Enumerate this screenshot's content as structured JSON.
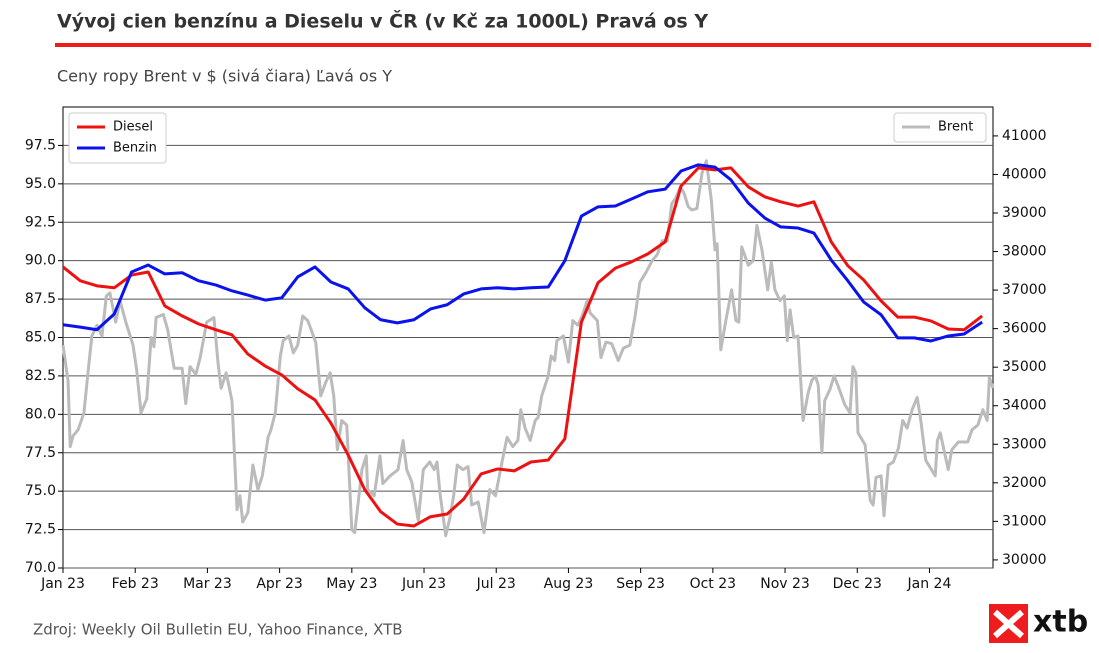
{
  "chart_data": {
    "type": "line",
    "title": "Vývoj cien benzínu a Dieselu v ČR (v Kč za 1000L) Pravá os Y",
    "subtitle": "Ceny ropy Brent v $ (sivá čiara) Ľavá os Y",
    "source": "Zdroj: Weekly Oil Bulletin EU, Yahoo Finance, XTB",
    "logo": "xtb",
    "xlim": [
      0,
      12.88
    ],
    "xticks": [
      {
        "value": 0,
        "label": "Jan 23"
      },
      {
        "value": 1,
        "label": "Feb 23"
      },
      {
        "value": 2,
        "label": "Mar 23"
      },
      {
        "value": 3,
        "label": "Apr 23"
      },
      {
        "value": 4,
        "label": "May 23"
      },
      {
        "value": 5,
        "label": "Jun 23"
      },
      {
        "value": 6,
        "label": "Jul 23"
      },
      {
        "value": 7,
        "label": "Aug 23"
      },
      {
        "value": 8,
        "label": "Sep 23"
      },
      {
        "value": 9,
        "label": "Oct 23"
      },
      {
        "value": 10,
        "label": "Nov 23"
      },
      {
        "value": 11,
        "label": "Dec 23"
      },
      {
        "value": 12,
        "label": "Jan 24"
      }
    ],
    "ylim": [
      70,
      100
    ],
    "yticks": [
      {
        "value": 70,
        "label": "70.0"
      },
      72.5,
      {
        "value": 75,
        "label": "75.0"
      },
      77.5,
      {
        "value": 80,
        "label": "80.0"
      },
      82.5,
      {
        "value": 85,
        "label": "85.0"
      },
      87.5,
      {
        "value": 90,
        "label": "90.0"
      },
      92.5,
      {
        "value": 95,
        "label": "95.0"
      },
      97.5
    ],
    "y2lim": [
      29790,
      41750
    ],
    "y2ticks": [
      30000,
      31000,
      32000,
      33000,
      34000,
      35000,
      36000,
      37000,
      38000,
      39000,
      40000,
      41000
    ],
    "grid": true,
    "legend": {
      "y2": "upper left",
      "y": "upper right"
    },
    "series": [
      {
        "name": "Diesel",
        "color": "#ee1111",
        "axis": "y2",
        "x": [
          0,
          0.24,
          0.47,
          0.71,
          0.95,
          1.18,
          1.41,
          1.65,
          1.88,
          2.12,
          2.34,
          2.56,
          2.8,
          3.03,
          3.25,
          3.49,
          3.71,
          3.95,
          4.18,
          4.4,
          4.63,
          4.86,
          5.09,
          5.32,
          5.55,
          5.79,
          6.02,
          6.25,
          6.48,
          6.72,
          6.95,
          7.18,
          7.41,
          7.65,
          7.87,
          8.1,
          8.34,
          8.56,
          8.8,
          9.03,
          9.25,
          9.49,
          9.72,
          9.94,
          10.18,
          10.4,
          10.64,
          10.87,
          11.09,
          11.33,
          11.56,
          11.79,
          12.02,
          12.26,
          12.48,
          12.73
        ],
        "values": [
          37600,
          37240,
          37110,
          37060,
          37390,
          37470,
          36590,
          36330,
          36120,
          35970,
          35840,
          35340,
          35030,
          34800,
          34440,
          34150,
          33550,
          32720,
          31820,
          31250,
          30930,
          30880,
          31120,
          31190,
          31580,
          32230,
          32360,
          32310,
          32540,
          32590,
          33140,
          36170,
          37190,
          37570,
          37730,
          37940,
          38250,
          39700,
          40170,
          40120,
          40170,
          39680,
          39420,
          39290,
          39180,
          39290,
          38250,
          37630,
          37260,
          36720,
          36300,
          36300,
          36200,
          35990,
          35970,
          36330
        ]
      },
      {
        "name": "Benzin",
        "color": "#0a12ee",
        "axis": "y2",
        "x": [
          0,
          0.24,
          0.47,
          0.71,
          0.95,
          1.18,
          1.41,
          1.65,
          1.88,
          2.12,
          2.34,
          2.56,
          2.8,
          3.03,
          3.25,
          3.49,
          3.71,
          3.95,
          4.18,
          4.4,
          4.63,
          4.86,
          5.09,
          5.32,
          5.55,
          5.79,
          6.02,
          6.25,
          6.48,
          6.72,
          6.95,
          7.18,
          7.41,
          7.65,
          7.87,
          8.1,
          8.34,
          8.56,
          8.8,
          9.03,
          9.25,
          9.49,
          9.72,
          9.94,
          10.18,
          10.4,
          10.64,
          10.87,
          11.09,
          11.33,
          11.56,
          11.79,
          12.02,
          12.26,
          12.48,
          12.73
        ],
        "values": [
          36100,
          36040,
          35970,
          36380,
          37470,
          37650,
          37420,
          37450,
          37240,
          37130,
          36980,
          36870,
          36740,
          36800,
          37340,
          37600,
          37210,
          37030,
          36540,
          36230,
          36150,
          36230,
          36510,
          36620,
          36900,
          37030,
          37060,
          37030,
          37060,
          37080,
          37760,
          38920,
          39160,
          39180,
          39360,
          39550,
          39620,
          40090,
          40250,
          40190,
          39860,
          39260,
          38870,
          38640,
          38610,
          38480,
          37780,
          37240,
          36690,
          36360,
          35760,
          35760,
          35680,
          35810,
          35860,
          36170
        ]
      },
      {
        "name": "Brent",
        "color": "#bbbbbb",
        "axis": "y",
        "x": [
          0,
          0.07,
          0.1,
          0.14,
          0.21,
          0.29,
          0.35,
          0.4,
          0.47,
          0.54,
          0.6,
          0.65,
          0.73,
          0.79,
          0.87,
          0.97,
          1.02,
          1.08,
          1.16,
          1.22,
          1.26,
          1.29,
          1.39,
          1.45,
          1.54,
          1.65,
          1.7,
          1.76,
          1.84,
          1.9,
          1.99,
          2.09,
          2.15,
          2.19,
          2.26,
          2.34,
          2.41,
          2.45,
          2.49,
          2.56,
          2.63,
          2.7,
          2.76,
          2.84,
          2.88,
          2.94,
          3.01,
          3.05,
          3.13,
          3.19,
          3.25,
          3.32,
          3.39,
          3.5,
          3.57,
          3.64,
          3.7,
          3.75,
          3.8,
          3.86,
          3.93,
          4.0,
          4.04,
          4.14,
          4.2,
          4.22,
          4.31,
          4.39,
          4.43,
          4.53,
          4.64,
          4.71,
          4.76,
          4.83,
          4.92,
          4.99,
          5.08,
          5.14,
          5.18,
          5.22,
          5.3,
          5.36,
          5.41,
          5.46,
          5.54,
          5.61,
          5.66,
          5.75,
          5.83,
          5.91,
          5.99,
          6.08,
          6.15,
          6.23,
          6.3,
          6.34,
          6.4,
          6.47,
          6.54,
          6.58,
          6.63,
          6.72,
          6.76,
          6.81,
          6.84,
          6.93,
          7.0,
          7.06,
          7.13,
          7.19,
          7.26,
          7.3,
          7.4,
          7.45,
          7.52,
          7.6,
          7.69,
          7.76,
          7.85,
          7.92,
          7.99,
          8.07,
          8.16,
          8.23,
          8.3,
          8.37,
          8.43,
          8.49,
          8.55,
          8.6,
          8.66,
          8.71,
          8.78,
          8.85,
          8.91,
          8.98,
          9.03,
          9.06,
          9.11,
          9.18,
          9.26,
          9.32,
          9.36,
          9.4,
          9.49,
          9.56,
          9.61,
          9.68,
          9.76,
          9.81,
          9.86,
          9.93,
          9.99,
          10.03,
          10.07,
          10.12,
          10.18,
          10.25,
          10.32,
          10.37,
          10.42,
          10.46,
          10.51,
          10.55,
          10.62,
          10.68,
          10.73,
          10.83,
          10.9,
          10.94,
          10.98,
          11.01,
          11.11,
          11.18,
          11.22,
          11.26,
          11.33,
          11.37,
          11.43,
          11.5,
          11.57,
          11.63,
          11.69,
          11.76,
          11.83,
          11.88,
          11.95,
          12.08,
          12.11,
          12.15,
          12.2,
          12.26,
          12.31,
          12.4,
          12.53,
          12.59,
          12.67,
          12.74,
          12.8,
          12.83,
          12.88
        ],
        "values": [
          84.5,
          82.2,
          77.9,
          78.6,
          79.0,
          80.1,
          82.9,
          85.1,
          85.8,
          85.1,
          87.7,
          87.9,
          86.0,
          87.4,
          86.0,
          84.5,
          82.9,
          80.1,
          81.0,
          85.0,
          84.4,
          86.3,
          86.5,
          85.5,
          83.0,
          83.0,
          80.7,
          83.1,
          82.6,
          83.7,
          86.0,
          86.3,
          83.2,
          81.7,
          82.7,
          80.9,
          73.8,
          74.7,
          73.0,
          73.6,
          76.7,
          75.1,
          76.0,
          78.5,
          79.0,
          80.1,
          83.8,
          84.8,
          85.1,
          84.0,
          84.5,
          86.4,
          86.1,
          84.7,
          81.2,
          82.1,
          82.7,
          81.2,
          77.7,
          79.6,
          79.3,
          72.5,
          72.3,
          76.4,
          77.3,
          75.1,
          74.7,
          77.3,
          75.5,
          76.0,
          76.4,
          78.3,
          76.4,
          75.6,
          73.1,
          76.4,
          76.9,
          76.4,
          76.9,
          74.9,
          72.1,
          73.3,
          74.7,
          76.7,
          76.4,
          76.6,
          74.1,
          74.3,
          72.3,
          75.1,
          74.7,
          76.9,
          78.5,
          77.9,
          78.3,
          80.3,
          79.1,
          78.3,
          79.6,
          79.8,
          81.2,
          82.5,
          83.8,
          83.5,
          84.8,
          85.1,
          83.4,
          86.1,
          85.8,
          86.4,
          87.4,
          86.6,
          86.1,
          83.7,
          84.7,
          84.6,
          83.5,
          84.3,
          84.5,
          86.3,
          88.6,
          89.2,
          90.0,
          90.4,
          91.3,
          91.3,
          93.7,
          94.1,
          94.8,
          94.4,
          93.5,
          93.3,
          93.4,
          95.7,
          96.5,
          93.9,
          90.7,
          91.1,
          84.2,
          86.1,
          88.1,
          86.1,
          86.0,
          90.9,
          89.7,
          90.0,
          92.3,
          90.7,
          88.1,
          89.9,
          88.1,
          87.4,
          87.7,
          84.8,
          86.8,
          85.0,
          85.1,
          79.6,
          81.4,
          82.2,
          82.5,
          81.9,
          77.5,
          80.9,
          81.6,
          82.5,
          81.9,
          80.6,
          80.1,
          83.1,
          82.7,
          78.8,
          78.0,
          74.4,
          74.1,
          75.9,
          76.0,
          73.4,
          76.7,
          76.9,
          77.8,
          79.6,
          79.1,
          80.3,
          81.1,
          79.6,
          77.0,
          76.0,
          78.3,
          78.8,
          77.7,
          76.4,
          77.7,
          78.2,
          78.2,
          79.0,
          79.3,
          80.3,
          79.6,
          82.4,
          81.7
        ]
      }
    ]
  }
}
